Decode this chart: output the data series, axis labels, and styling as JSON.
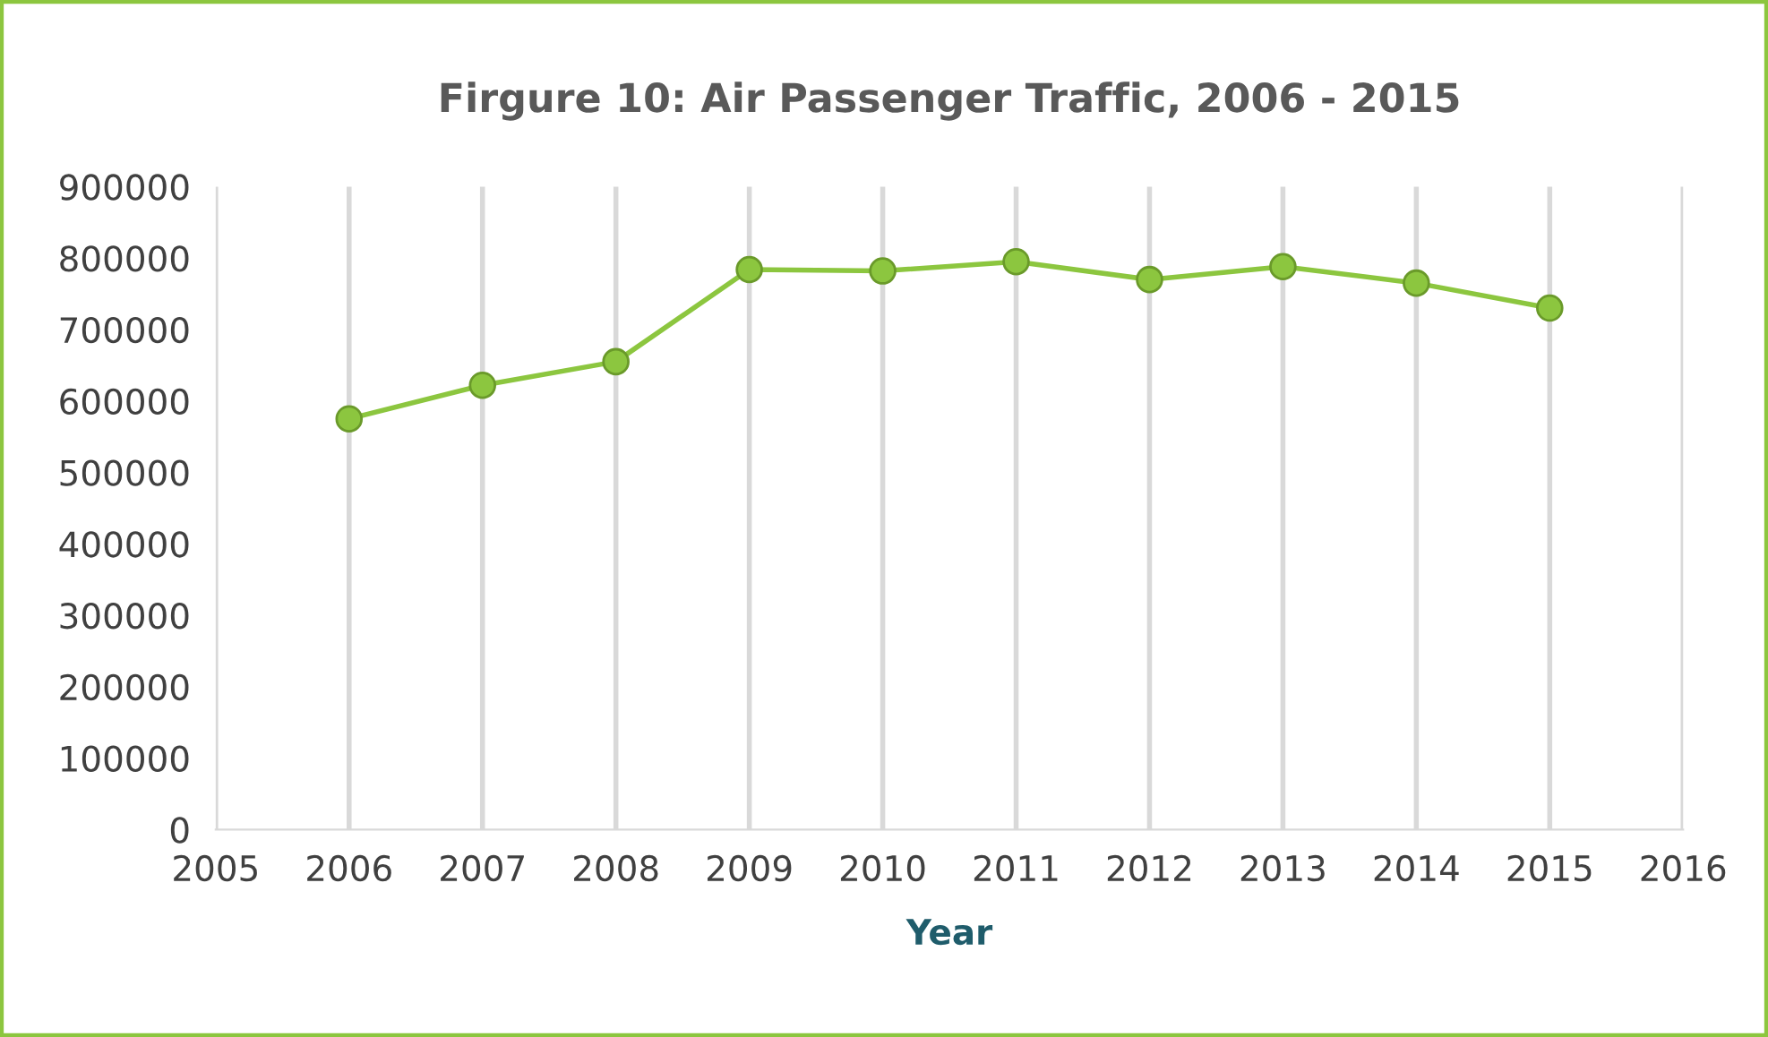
{
  "chart_data": {
    "type": "line",
    "title": "Firgure 10: Air Passenger Traffic, 2006 - 2015",
    "xlabel": "Year",
    "x": [
      2006,
      2007,
      2008,
      2009,
      2010,
      2011,
      2012,
      2013,
      2014,
      2015
    ],
    "series": [
      {
        "color": "#8cc63f",
        "values": [
          575000,
          622000,
          655000,
          784000,
          782000,
          795000,
          770000,
          788000,
          765000,
          730000
        ]
      }
    ],
    "xlim": [
      2005,
      2016
    ],
    "xticks": [
      2005,
      2006,
      2007,
      2008,
      2009,
      2010,
      2011,
      2012,
      2013,
      2014,
      2015,
      2016
    ],
    "ylim": [
      0,
      900000
    ],
    "yticks": [
      0,
      100000,
      200000,
      300000,
      400000,
      500000,
      600000,
      700000,
      800000,
      900000
    ],
    "grid": "x",
    "marker": "circle",
    "line_style": "solid",
    "legend": false
  }
}
